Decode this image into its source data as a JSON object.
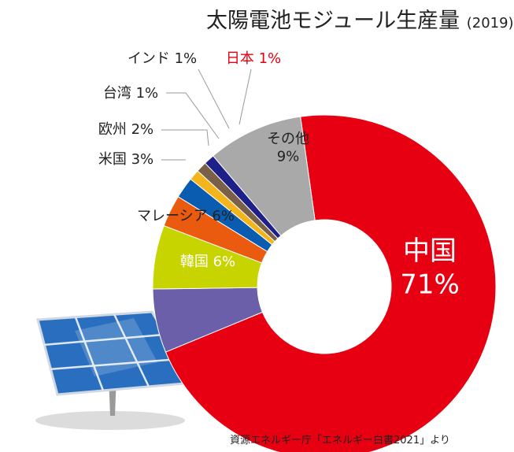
{
  "title": "太陽電池モジュール生産量",
  "title_year": "(2019)",
  "source": "資源エネルギー庁「エネルギー白書2021」より",
  "chart_data": {
    "type": "pie",
    "title": "太陽電池モジュール生産量 (2019)",
    "slices": [
      {
        "name": "中国",
        "value": 71,
        "label": "71%",
        "color": "#e60012"
      },
      {
        "name": "韓国",
        "value": 6,
        "label": "6%",
        "color": "#6a5fa8"
      },
      {
        "name": "マレーシア",
        "value": 6,
        "label": "6%",
        "color": "#c8d400"
      },
      {
        "name": "米国",
        "value": 3,
        "label": "3%",
        "color": "#ea5a0f"
      },
      {
        "name": "欧州",
        "value": 2,
        "label": "2%",
        "color": "#0a5cb0"
      },
      {
        "name": "台湾",
        "value": 1,
        "label": "1%",
        "color": "#f4b51c"
      },
      {
        "name": "インド",
        "value": 1,
        "label": "1%",
        "color": "#7a6048"
      },
      {
        "name": "日本",
        "value": 1,
        "label": "1%",
        "color": "#1d2088"
      },
      {
        "name": "その他",
        "value": 9,
        "label": "9%",
        "color": "#a9a9a9"
      }
    ],
    "highlight_label_color": "#e60012"
  }
}
